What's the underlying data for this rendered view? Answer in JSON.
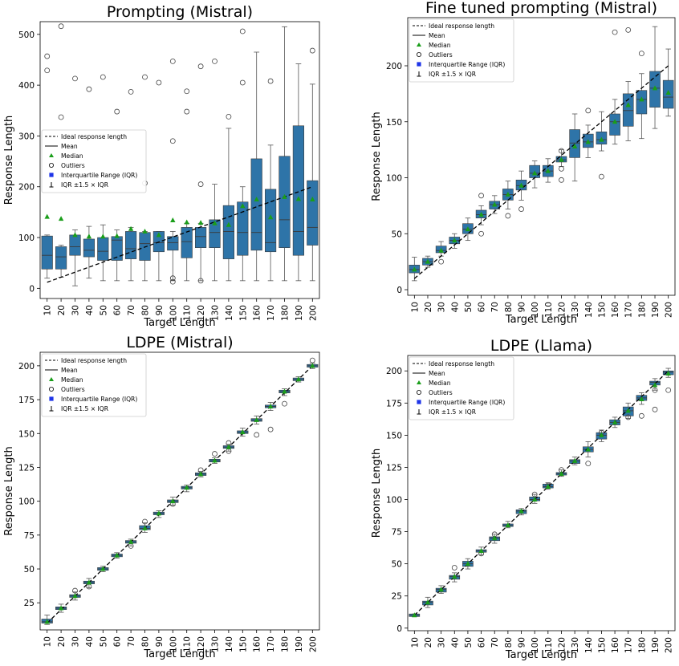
{
  "legend_labels": {
    "ideal": "Ideal response length",
    "mean": "Mean",
    "median": "Median",
    "outliers": "Outliers",
    "iqr": "Interquartile Range (IQR)",
    "whisker": "IQR ±1.5 ×  IQR"
  },
  "colors": {
    "box": "#2e74a8",
    "median_marker": "#1a9e1a",
    "iqr_marker": "#1f35e8",
    "ideal_line": "#000000"
  },
  "chart_data": [
    {
      "type": "box",
      "title": "Prompting (Mistral)",
      "xlabel": "Target Length",
      "ylabel": "Response Length",
      "categories": [
        "10",
        "20",
        "30",
        "40",
        "50",
        "60",
        "70",
        "80",
        "90",
        "100",
        "110",
        "120",
        "130",
        "140",
        "150",
        "160",
        "170",
        "180",
        "190",
        "200"
      ],
      "yticks": [
        0,
        100,
        200,
        300,
        400,
        500
      ],
      "ylim": [
        -20,
        525
      ],
      "ideal_line": [
        [
          10,
          12
        ],
        [
          200,
          200
        ]
      ],
      "legend_position": "center-left",
      "boxes": [
        {
          "q1": 38,
          "median": 65,
          "q3": 103,
          "wlo": 20,
          "whi": 105
        },
        {
          "q1": 38,
          "median": 62,
          "q3": 82,
          "wlo": 22,
          "whi": 85
        },
        {
          "q1": 65,
          "median": 82,
          "q3": 105,
          "wlo": 5,
          "whi": 115
        },
        {
          "q1": 62,
          "median": 75,
          "q3": 97,
          "wlo": 20,
          "whi": 122
        },
        {
          "q1": 55,
          "median": 73,
          "q3": 100,
          "wlo": 15,
          "whi": 125
        },
        {
          "q1": 55,
          "median": 95,
          "q3": 102,
          "wlo": 15,
          "whi": 115
        },
        {
          "q1": 58,
          "median": 78,
          "q3": 112,
          "wlo": 15,
          "whi": 120
        },
        {
          "q1": 55,
          "median": 88,
          "q3": 110,
          "wlo": 15,
          "whi": 112
        },
        {
          "q1": 72,
          "median": 90,
          "q3": 112,
          "wlo": 15,
          "whi": 112
        },
        {
          "q1": 75,
          "median": 90,
          "q3": 102,
          "wlo": 15,
          "whi": 112
        },
        {
          "q1": 60,
          "median": 92,
          "q3": 120,
          "wlo": 15,
          "whi": 128
        },
        {
          "q1": 80,
          "median": 102,
          "q3": 120,
          "wlo": 15,
          "whi": 128
        },
        {
          "q1": 80,
          "median": 110,
          "q3": 135,
          "wlo": 15,
          "whi": 205
        },
        {
          "q1": 58,
          "median": 112,
          "q3": 163,
          "wlo": 15,
          "whi": 315
        },
        {
          "q1": 65,
          "median": 110,
          "q3": 170,
          "wlo": 15,
          "whi": 200
        },
        {
          "q1": 75,
          "median": 110,
          "q3": 255,
          "wlo": 15,
          "whi": 465
        },
        {
          "q1": 72,
          "median": 90,
          "q3": 195,
          "wlo": 15,
          "whi": 282
        },
        {
          "q1": 80,
          "median": 135,
          "q3": 260,
          "wlo": 15,
          "whi": 515
        },
        {
          "q1": 65,
          "median": 112,
          "q3": 320,
          "wlo": 15,
          "whi": 442
        },
        {
          "q1": 85,
          "median": 120,
          "q3": 212,
          "wlo": 15,
          "whi": 402
        }
      ],
      "medians_green": [
        141,
        137,
        105,
        102,
        102,
        103,
        117,
        112,
        105,
        134,
        130,
        129,
        128,
        125,
        162,
        175,
        140,
        180,
        176,
        175
      ],
      "outliers": [
        [
          10,
          457
        ],
        [
          10,
          429
        ],
        [
          20,
          516
        ],
        [
          20,
          337
        ],
        [
          30,
          413
        ],
        [
          40,
          392
        ],
        [
          50,
          416
        ],
        [
          60,
          348
        ],
        [
          70,
          387
        ],
        [
          80,
          416
        ],
        [
          80,
          207
        ],
        [
          90,
          405
        ],
        [
          100,
          447
        ],
        [
          100,
          290
        ],
        [
          100,
          20
        ],
        [
          100,
          13
        ],
        [
          110,
          388
        ],
        [
          110,
          348
        ],
        [
          120,
          437
        ],
        [
          120,
          205
        ],
        [
          120,
          15
        ],
        [
          130,
          447
        ],
        [
          140,
          338
        ],
        [
          150,
          506
        ],
        [
          150,
          405
        ],
        [
          170,
          408
        ],
        [
          200,
          468
        ]
      ]
    },
    {
      "type": "box",
      "title": "Fine tuned prompting (Mistral)",
      "xlabel": "Target Length",
      "ylabel": "Response Length",
      "categories": [
        "10",
        "20",
        "30",
        "40",
        "50",
        "60",
        "70",
        "80",
        "90",
        "100",
        "110",
        "120",
        "130",
        "140",
        "150",
        "160",
        "170",
        "180",
        "190",
        "200"
      ],
      "yticks": [
        0,
        50,
        100,
        150,
        200
      ],
      "ylim": [
        -5,
        243
      ],
      "ideal_line": [
        [
          10,
          10
        ],
        [
          200,
          200
        ]
      ],
      "legend_position": "top-left",
      "boxes": [
        {
          "q1": 15,
          "median": 18,
          "q3": 22,
          "wlo": 8,
          "whi": 29
        },
        {
          "q1": 22,
          "median": 25,
          "q3": 28,
          "wlo": 20,
          "whi": 30
        },
        {
          "q1": 33,
          "median": 35,
          "q3": 39,
          "wlo": 30,
          "whi": 43
        },
        {
          "q1": 41,
          "median": 44,
          "q3": 47,
          "wlo": 37,
          "whi": 50
        },
        {
          "q1": 50,
          "median": 54,
          "q3": 59,
          "wlo": 44,
          "whi": 64
        },
        {
          "q1": 64,
          "median": 67,
          "q3": 71,
          "wlo": 58,
          "whi": 75
        },
        {
          "q1": 72,
          "median": 76,
          "q3": 79,
          "wlo": 68,
          "whi": 84
        },
        {
          "q1": 80,
          "median": 85,
          "q3": 90,
          "wlo": 72,
          "whi": 97
        },
        {
          "q1": 89,
          "median": 93,
          "q3": 98,
          "wlo": 80,
          "whi": 106
        },
        {
          "q1": 100,
          "median": 104,
          "q3": 111,
          "wlo": 91,
          "whi": 115
        },
        {
          "q1": 101,
          "median": 106,
          "q3": 111,
          "wlo": 96,
          "whi": 117
        },
        {
          "q1": 114,
          "median": 116,
          "q3": 119,
          "wlo": 110,
          "whi": 125
        },
        {
          "q1": 118,
          "median": 131,
          "q3": 143,
          "wlo": 97,
          "whi": 157
        },
        {
          "q1": 127,
          "median": 132,
          "q3": 139,
          "wlo": 118,
          "whi": 147
        },
        {
          "q1": 130,
          "median": 134,
          "q3": 141,
          "wlo": 124,
          "whi": 159
        },
        {
          "q1": 138,
          "median": 150,
          "q3": 157,
          "wlo": 130,
          "whi": 170
        },
        {
          "q1": 146,
          "median": 160,
          "q3": 175,
          "wlo": 133,
          "whi": 186
        },
        {
          "q1": 157,
          "median": 170,
          "q3": 178,
          "wlo": 135,
          "whi": 193
        },
        {
          "q1": 163,
          "median": 180,
          "q3": 195,
          "wlo": 144,
          "whi": 235
        },
        {
          "q1": 162,
          "median": 172,
          "q3": 187,
          "wlo": 155,
          "whi": 215
        }
      ],
      "medians_green": [
        18,
        25,
        35,
        44,
        54,
        67,
        76,
        85,
        93,
        104,
        106,
        116,
        128,
        132,
        134,
        150,
        165,
        170,
        180,
        176
      ],
      "outliers": [
        [
          30,
          25
        ],
        [
          60,
          84
        ],
        [
          60,
          50
        ],
        [
          80,
          66
        ],
        [
          90,
          72
        ],
        [
          120,
          98
        ],
        [
          120,
          108
        ],
        [
          120,
          124
        ],
        [
          140,
          160
        ],
        [
          150,
          101
        ],
        [
          160,
          230
        ],
        [
          170,
          232
        ],
        [
          180,
          211
        ]
      ]
    },
    {
      "type": "box",
      "title": "LDPE (Mistral)",
      "xlabel": "Target Length",
      "ylabel": "Response Length",
      "categories": [
        "10",
        "20",
        "30",
        "40",
        "50",
        "60",
        "70",
        "80",
        "90",
        "100",
        "110",
        "120",
        "130",
        "140",
        "150",
        "160",
        "170",
        "180",
        "190",
        "200"
      ],
      "yticks": [
        25,
        50,
        75,
        100,
        125,
        150,
        175,
        200
      ],
      "ylim": [
        5,
        210
      ],
      "ideal_line": [
        [
          10,
          10
        ],
        [
          200,
          200
        ]
      ],
      "legend_position": "top-left",
      "boxes": [
        {
          "q1": 10,
          "median": 11,
          "q3": 13,
          "wlo": 9,
          "whi": 16
        },
        {
          "q1": 20,
          "median": 21,
          "q3": 22,
          "wlo": 18,
          "whi": 24
        },
        {
          "q1": 29,
          "median": 30,
          "q3": 31,
          "wlo": 27,
          "whi": 33
        },
        {
          "q1": 39,
          "median": 40,
          "q3": 41,
          "wlo": 36,
          "whi": 43
        },
        {
          "q1": 49,
          "median": 50,
          "q3": 51,
          "wlo": 48,
          "whi": 52
        },
        {
          "q1": 59,
          "median": 60,
          "q3": 61,
          "wlo": 58,
          "whi": 62
        },
        {
          "q1": 69,
          "median": 70,
          "q3": 71,
          "wlo": 67,
          "whi": 72
        },
        {
          "q1": 79,
          "median": 80,
          "q3": 82,
          "wlo": 77,
          "whi": 84
        },
        {
          "q1": 90,
          "median": 91,
          "q3": 92,
          "wlo": 88,
          "whi": 93
        },
        {
          "q1": 99,
          "median": 100,
          "q3": 101,
          "wlo": 97,
          "whi": 103
        },
        {
          "q1": 109,
          "median": 110,
          "q3": 111,
          "wlo": 107,
          "whi": 112
        },
        {
          "q1": 119,
          "median": 120,
          "q3": 121,
          "wlo": 118,
          "whi": 122
        },
        {
          "q1": 129,
          "median": 130,
          "q3": 131,
          "wlo": 128,
          "whi": 132
        },
        {
          "q1": 139,
          "median": 140,
          "q3": 141,
          "wlo": 137,
          "whi": 142
        },
        {
          "q1": 150,
          "median": 151,
          "q3": 152,
          "wlo": 148,
          "whi": 154
        },
        {
          "q1": 159,
          "median": 160,
          "q3": 161,
          "wlo": 157,
          "whi": 163
        },
        {
          "q1": 169,
          "median": 170,
          "q3": 171,
          "wlo": 167,
          "whi": 173
        },
        {
          "q1": 180,
          "median": 181,
          "q3": 182,
          "wlo": 178,
          "whi": 183
        },
        {
          "q1": 189,
          "median": 190,
          "q3": 191,
          "wlo": 188,
          "whi": 192
        },
        {
          "q1": 199,
          "median": 200,
          "q3": 201,
          "wlo": 198,
          "whi": 202
        }
      ],
      "medians_green": [
        11,
        21,
        30,
        40,
        50,
        60,
        70,
        80,
        91,
        100,
        110,
        120,
        130,
        140,
        151,
        160,
        170,
        181,
        190,
        200
      ],
      "outliers": [
        [
          30,
          34
        ],
        [
          40,
          37
        ],
        [
          70,
          67
        ],
        [
          80,
          85
        ],
        [
          100,
          98
        ],
        [
          120,
          123
        ],
        [
          130,
          135
        ],
        [
          140,
          143
        ],
        [
          140,
          137
        ],
        [
          160,
          149
        ],
        [
          170,
          153
        ],
        [
          180,
          172
        ],
        [
          200,
          204
        ]
      ]
    },
    {
      "type": "box",
      "title": "LDPE (Llama)",
      "xlabel": "Target Length",
      "ylabel": "Response Length",
      "categories": [
        "10",
        "20",
        "30",
        "40",
        "50",
        "60",
        "70",
        "80",
        "90",
        "100",
        "110",
        "120",
        "130",
        "140",
        "150",
        "160",
        "170",
        "180",
        "190",
        "200"
      ],
      "yticks": [
        0,
        25,
        50,
        75,
        100,
        125,
        150,
        175,
        200
      ],
      "ylim": [
        -2,
        212
      ],
      "ideal_line": [
        [
          10,
          10
        ],
        [
          200,
          200
        ]
      ],
      "legend_position": "top-left",
      "boxes": [
        {
          "q1": 9,
          "median": 10,
          "q3": 11,
          "wlo": 9,
          "whi": 11
        },
        {
          "q1": 18,
          "median": 20,
          "q3": 21,
          "wlo": 16,
          "whi": 24
        },
        {
          "q1": 28,
          "median": 30,
          "q3": 31,
          "wlo": 27,
          "whi": 33
        },
        {
          "q1": 38,
          "median": 40,
          "q3": 41,
          "wlo": 36,
          "whi": 43
        },
        {
          "q1": 48,
          "median": 50,
          "q3": 52,
          "wlo": 46,
          "whi": 54
        },
        {
          "q1": 59,
          "median": 60,
          "q3": 61,
          "wlo": 57,
          "whi": 63
        },
        {
          "q1": 68,
          "median": 70,
          "q3": 71,
          "wlo": 66,
          "whi": 73
        },
        {
          "q1": 79,
          "median": 80,
          "q3": 81,
          "wlo": 78,
          "whi": 83
        },
        {
          "q1": 89,
          "median": 91,
          "q3": 92,
          "wlo": 88,
          "whi": 93
        },
        {
          "q1": 99,
          "median": 100,
          "q3": 102,
          "wlo": 97,
          "whi": 104
        },
        {
          "q1": 109,
          "median": 110,
          "q3": 112,
          "wlo": 108,
          "whi": 113
        },
        {
          "q1": 119,
          "median": 120,
          "q3": 121,
          "wlo": 118,
          "whi": 123
        },
        {
          "q1": 128,
          "median": 130,
          "q3": 131,
          "wlo": 127,
          "whi": 133
        },
        {
          "q1": 137,
          "median": 139,
          "q3": 141,
          "wlo": 133,
          "whi": 145
        },
        {
          "q1": 147,
          "median": 150,
          "q3": 152,
          "wlo": 145,
          "whi": 154
        },
        {
          "q1": 158,
          "median": 160,
          "q3": 162,
          "wlo": 156,
          "whi": 164
        },
        {
          "q1": 165,
          "median": 169,
          "q3": 172,
          "wlo": 163,
          "whi": 175
        },
        {
          "q1": 177,
          "median": 179,
          "q3": 181,
          "wlo": 174,
          "whi": 183
        },
        {
          "q1": 189,
          "median": 191,
          "q3": 192,
          "wlo": 185,
          "whi": 194
        },
        {
          "q1": 197,
          "median": 199,
          "q3": 200,
          "wlo": 195,
          "whi": 202
        }
      ],
      "medians_green": [
        10,
        20,
        30,
        40,
        50,
        60,
        70,
        80,
        91,
        100,
        110,
        120,
        130,
        139,
        150,
        160,
        169,
        178,
        189,
        198
      ],
      "outliers": [
        [
          40,
          47
        ],
        [
          60,
          58
        ],
        [
          70,
          73
        ],
        [
          100,
          104
        ],
        [
          110,
          111
        ],
        [
          120,
          123
        ],
        [
          140,
          128
        ],
        [
          150,
          152
        ],
        [
          170,
          164
        ],
        [
          180,
          165
        ],
        [
          190,
          170
        ],
        [
          190,
          185
        ],
        [
          200,
          185
        ]
      ]
    }
  ]
}
